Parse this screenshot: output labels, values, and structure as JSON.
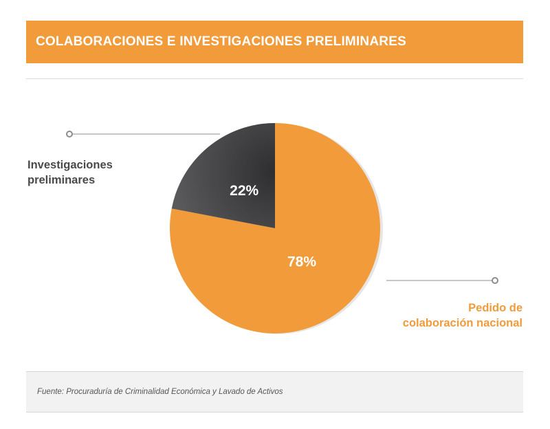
{
  "header": {
    "title": "COLABORACIONES E INVESTIGACIONES PRELIMINARES"
  },
  "colors": {
    "accent": "#f29b3a",
    "dark_slice": "#4d4d4f",
    "leader_line": "#8c8c8c"
  },
  "chart_data": {
    "type": "pie",
    "title": "COLABORACIONES E INVESTIGACIONES PRELIMINARES",
    "slices": [
      {
        "label_lines": [
          "Pedido de",
          "colaboración nacional"
        ],
        "value": 78,
        "display": "78%",
        "color": "#f29b3a"
      },
      {
        "label_lines": [
          "Investigaciones",
          "preliminares"
        ],
        "value": 22,
        "display": "22%",
        "color": "#4d4d4f"
      }
    ],
    "legend": "none"
  },
  "source": {
    "text": "Fuente: Procuraduría de Criminalidad Económica y Lavado de Activos"
  }
}
